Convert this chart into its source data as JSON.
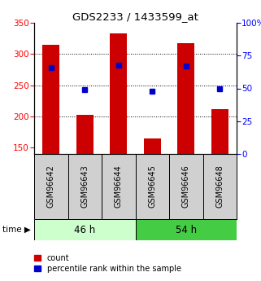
{
  "title": "GDS2233 / 1433599_at",
  "samples": [
    "GSM96642",
    "GSM96643",
    "GSM96644",
    "GSM96645",
    "GSM96646",
    "GSM96648"
  ],
  "counts": [
    315,
    203,
    333,
    165,
    317,
    212
  ],
  "percentiles": [
    66,
    49,
    68,
    48,
    67,
    50
  ],
  "ylim_left": [
    140,
    350
  ],
  "ylim_right": [
    0,
    100
  ],
  "yticks_left": [
    150,
    200,
    250,
    300,
    350
  ],
  "yticks_right": [
    0,
    25,
    50,
    75,
    100
  ],
  "bar_color": "#cc0000",
  "dot_color": "#0000cc",
  "bar_width": 0.5,
  "color_46h": "#ccffcc",
  "color_54h": "#44cc44",
  "label_count": "count",
  "label_percentile": "percentile rank within the sample",
  "grid_dotted_values": [
    200,
    250,
    300
  ],
  "bar_bottom": 140
}
